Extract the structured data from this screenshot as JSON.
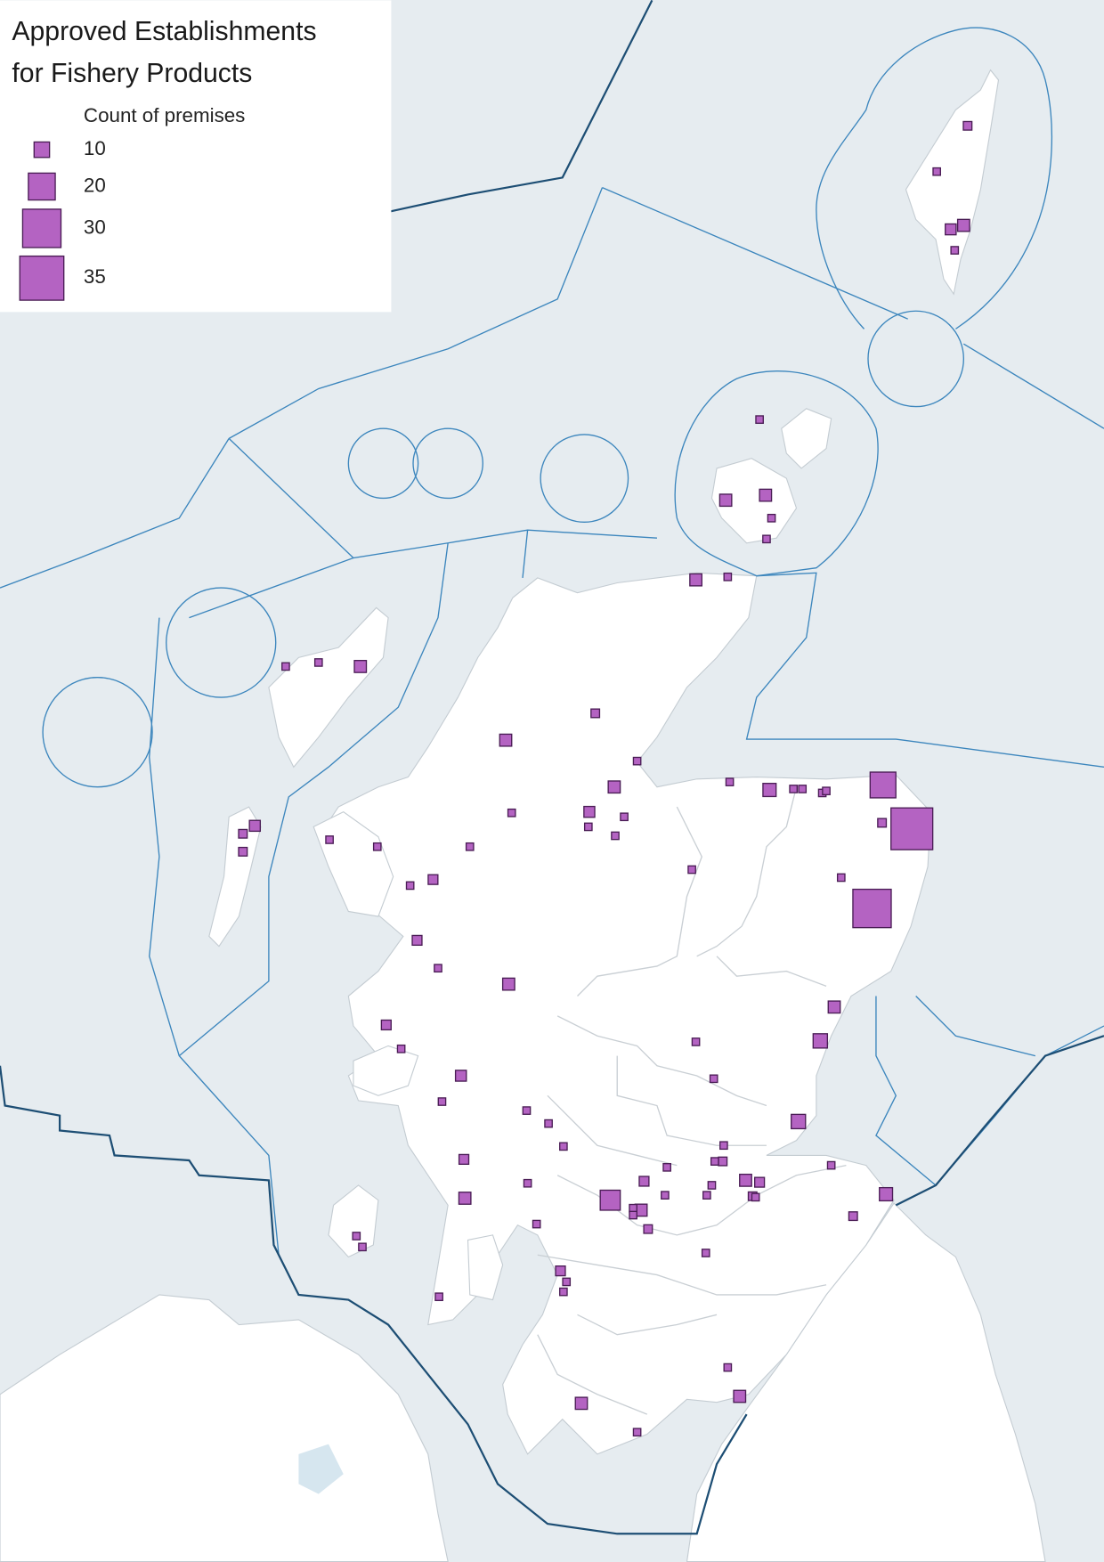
{
  "map": {
    "title": [
      "Approved Establishments",
      "for Fishery Products"
    ],
    "legend": {
      "title": "Count of premises",
      "sizes": [
        10,
        20,
        30,
        35
      ]
    },
    "premises": [
      3,
      4,
      7,
      6,
      3,
      3,
      7,
      7,
      3,
      3,
      7,
      3,
      3,
      3,
      7,
      6,
      4,
      4,
      4,
      7,
      3,
      7,
      6,
      3,
      3,
      3,
      3,
      3,
      3,
      3,
      5,
      3,
      5,
      3,
      7,
      5,
      3,
      3,
      8,
      3,
      3,
      3,
      3,
      19,
      4,
      33,
      3,
      3,
      30,
      7,
      9,
      3,
      3,
      9,
      6,
      3,
      3,
      3,
      3,
      5,
      7,
      3,
      3,
      3,
      3,
      3,
      14,
      5,
      3,
      3,
      3,
      3,
      7,
      3,
      3,
      4,
      3,
      4,
      3,
      7,
      5,
      4,
      3,
      3,
      8,
      4,
      3,
      5,
      3,
      3,
      3,
      7,
      7,
      3
    ]
  }
}
